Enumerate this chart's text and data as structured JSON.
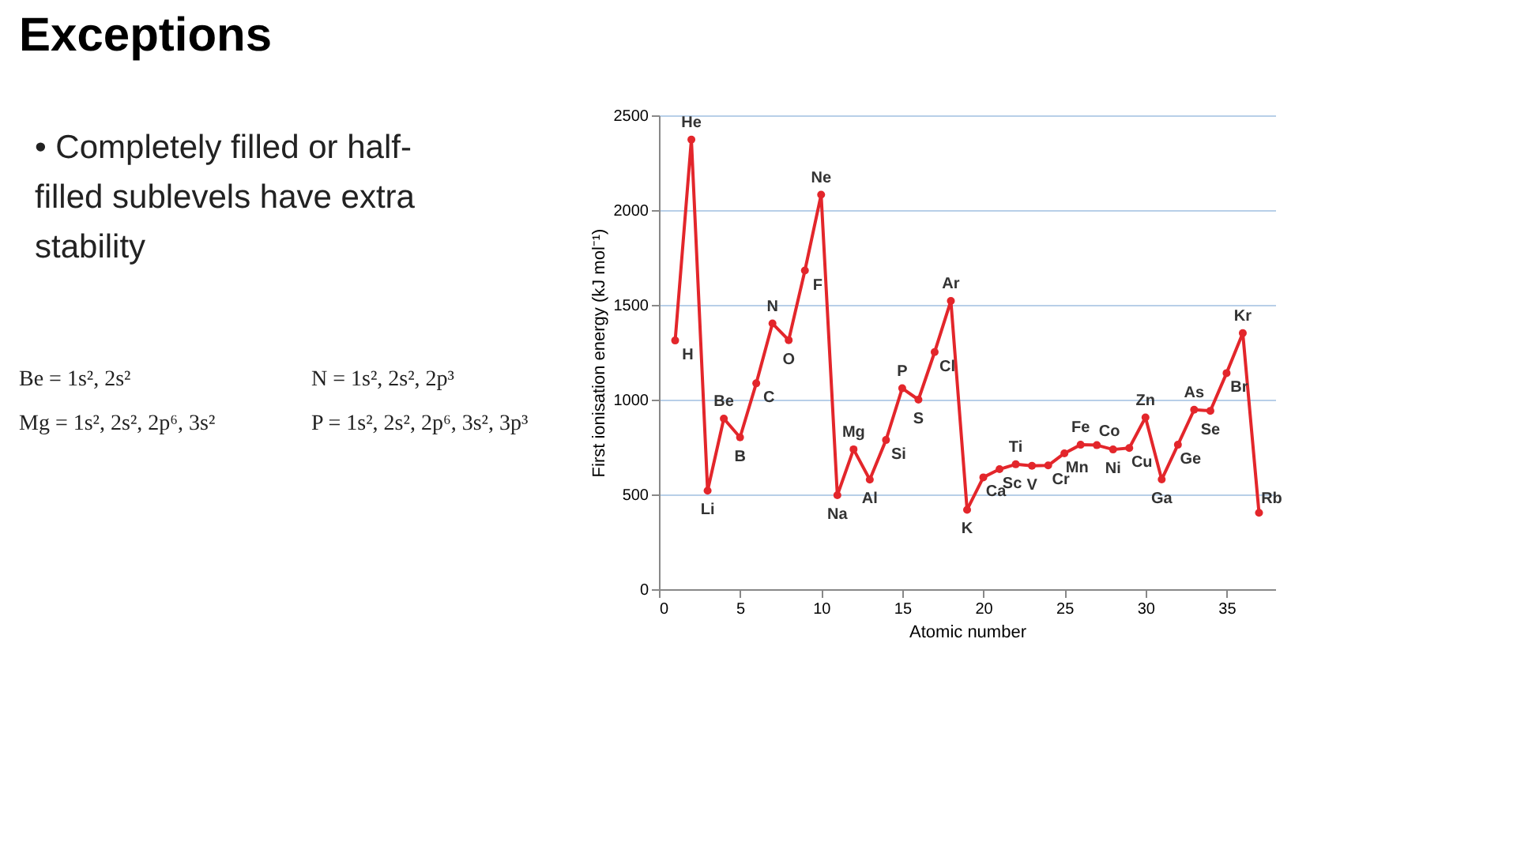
{
  "chart_data": {
    "type": "line",
    "title": "Exceptions",
    "xlabel": "Atomic number",
    "ylabel": "First ionisation energy (kJ mol⁻¹)",
    "x": [
      1,
      2,
      3,
      4,
      5,
      6,
      7,
      8,
      9,
      10,
      11,
      12,
      13,
      14,
      15,
      16,
      17,
      18,
      19,
      20,
      21,
      22,
      23,
      24,
      25,
      26,
      27,
      28,
      29,
      30,
      31,
      32,
      33,
      34,
      35,
      36,
      37
    ],
    "series": [
      {
        "color": "#e3262b",
        "values": [
          1312,
          2372,
          520,
          900,
          801,
          1086,
          1402,
          1314,
          1681,
          2081,
          496,
          738,
          578,
          787,
          1060,
          1000,
          1251,
          1521,
          419,
          590,
          633,
          659,
          651,
          653,
          717,
          762,
          760,
          737,
          745,
          906,
          579,
          762,
          947,
          941,
          1140,
          1351,
          403
        ]
      }
    ],
    "xlim": [
      0,
      38
    ],
    "xticks": [
      0,
      5,
      10,
      15,
      20,
      25,
      30,
      35
    ],
    "ylim": [
      0,
      2500
    ],
    "yticks": [
      0,
      500,
      1000,
      1500,
      2000,
      2500
    ],
    "grid": "y",
    "marker": "circle",
    "line_style": "solid",
    "annotations": [
      "• Completely filled or half-filled sublevels have extra stability",
      "Be = 1s², 2s²",
      "N = 1s², 2s², 2p³",
      "Mg = 1s², 2s², 2p⁶, 3s²",
      "P = 1s², 2s², 2p⁶, 3s², 3p³",
      {
        "text": "H",
        "x": 1,
        "y": 1312
      },
      {
        "text": "He",
        "x": 2,
        "y": 2372
      },
      {
        "text": "Li",
        "x": 3,
        "y": 520
      },
      {
        "text": "Be",
        "x": 4,
        "y": 900
      },
      {
        "text": "B",
        "x": 5,
        "y": 801
      },
      {
        "text": "C",
        "x": 6,
        "y": 1086
      },
      {
        "text": "N",
        "x": 7,
        "y": 1402
      },
      {
        "text": "O",
        "x": 8,
        "y": 1314
      },
      {
        "text": "F",
        "x": 9,
        "y": 1681
      },
      {
        "text": "Ne",
        "x": 10,
        "y": 2081
      },
      {
        "text": "Na",
        "x": 11,
        "y": 496
      },
      {
        "text": "Mg",
        "x": 12,
        "y": 738
      },
      {
        "text": "Al",
        "x": 13,
        "y": 578
      },
      {
        "text": "Si",
        "x": 14,
        "y": 787
      },
      {
        "text": "P",
        "x": 15,
        "y": 1060
      },
      {
        "text": "S",
        "x": 16,
        "y": 1000
      },
      {
        "text": "Cl",
        "x": 17,
        "y": 1251
      },
      {
        "text": "Ar",
        "x": 18,
        "y": 1521
      },
      {
        "text": "K",
        "x": 19,
        "y": 419
      },
      {
        "text": "Ca",
        "x": 20,
        "y": 590
      },
      {
        "text": "Sc",
        "x": 21,
        "y": 633
      },
      {
        "text": "Ti",
        "x": 22,
        "y": 659
      },
      {
        "text": "V",
        "x": 23,
        "y": 651
      },
      {
        "text": "Cr",
        "x": 24,
        "y": 653
      },
      {
        "text": "Mn",
        "x": 25,
        "y": 717
      },
      {
        "text": "Fe",
        "x": 26,
        "y": 762
      },
      {
        "text": "Co",
        "x": 27,
        "y": 760
      },
      {
        "text": "Ni",
        "x": 28,
        "y": 737
      },
      {
        "text": "Cu",
        "x": 29,
        "y": 745
      },
      {
        "text": "Zn",
        "x": 30,
        "y": 906
      },
      {
        "text": "Ga",
        "x": 31,
        "y": 579
      },
      {
        "text": "Ge",
        "x": 32,
        "y": 762
      },
      {
        "text": "As",
        "x": 33,
        "y": 947
      },
      {
        "text": "Se",
        "x": 34,
        "y": 941
      },
      {
        "text": "Br",
        "x": 35,
        "y": 1140
      },
      {
        "text": "Kr",
        "x": 36,
        "y": 1351
      },
      {
        "text": "Rb",
        "x": 37,
        "y": 403
      }
    ]
  }
}
